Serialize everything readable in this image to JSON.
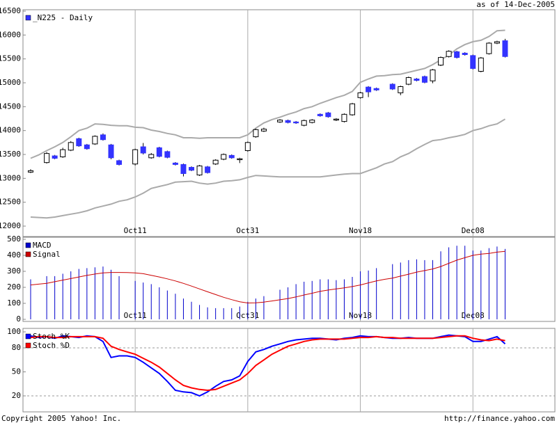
{
  "header": {
    "date": "as of 14-Dec-2005"
  },
  "footer": {
    "copyright": "Copyright 2005 Yahoo! Inc.",
    "url": "http://finance.yahoo.com"
  },
  "chart_data": [
    {
      "type": "candlestick",
      "categories": [
        null,
        null,
        null,
        null,
        null,
        null,
        null,
        null,
        null,
        null,
        null,
        null,
        null,
        "Oct11",
        null,
        null,
        null,
        null,
        null,
        null,
        null,
        null,
        null,
        null,
        null,
        null,
        null,
        "Oct31",
        null,
        null,
        null,
        null,
        null,
        null,
        null,
        null,
        null,
        null,
        null,
        null,
        null,
        "Nov18",
        null,
        null,
        null,
        null,
        null,
        null,
        null,
        null,
        null,
        null,
        null,
        null,
        null,
        "Dec08",
        null,
        null,
        null,
        null
      ],
      "ylim": [
        12000,
        16500
      ],
      "yticks": [
        12000,
        12500,
        13000,
        13500,
        14000,
        14500,
        15000,
        15500,
        16000,
        16500
      ],
      "series": [
        {
          "name": "_N225 - Daily",
          "color": "#3333ff",
          "up_color": "#ffffff",
          "open": [
            13130,
            null,
            13330,
            13470,
            13450,
            13590,
            13830,
            13700,
            13720,
            13910,
            13700,
            13370,
            null,
            13300,
            13660,
            13430,
            13640,
            13560,
            13320,
            13290,
            13230,
            13070,
            13240,
            13300,
            13400,
            13480,
            13390,
            13580,
            13870,
            13990,
            null,
            14180,
            14210,
            14180,
            14110,
            14170,
            14340,
            14370,
            14220,
            14190,
            14330,
            14690,
            14910,
            14880,
            null,
            14970,
            14790,
            14970,
            15080,
            15130,
            15040,
            15370,
            15550,
            15650,
            15620,
            15570,
            15240,
            15610,
            15830,
            15880
          ],
          "high": [
            13190,
            null,
            13550,
            13490,
            13640,
            13780,
            13850,
            13720,
            13900,
            13940,
            13720,
            13390,
            null,
            13620,
            13740,
            13530,
            13660,
            13580,
            13340,
            13310,
            13250,
            13280,
            13260,
            13400,
            13520,
            13500,
            13430,
            13770,
            14040,
            14060,
            null,
            14240,
            14230,
            14200,
            14230,
            14240,
            14360,
            14390,
            14260,
            14360,
            14580,
            14810,
            14930,
            14900,
            null,
            14990,
            14940,
            15130,
            15100,
            15150,
            15290,
            15550,
            15680,
            15670,
            15640,
            15590,
            15540,
            15850,
            15880,
            15920
          ],
          "low": [
            13110,
            null,
            13310,
            13400,
            13430,
            13570,
            13660,
            13600,
            13700,
            13790,
            13400,
            13270,
            null,
            13270,
            13500,
            13410,
            13440,
            13420,
            13270,
            13040,
            13150,
            13050,
            13100,
            13280,
            13380,
            13410,
            13320,
            13560,
            13850,
            13970,
            null,
            14160,
            14150,
            14140,
            14090,
            14150,
            14290,
            14270,
            14200,
            14170,
            14310,
            14670,
            14700,
            14830,
            null,
            14850,
            14740,
            14950,
            15030,
            14990,
            14990,
            15350,
            15530,
            15510,
            15570,
            15280,
            15220,
            15590,
            15810,
            15530
          ],
          "close": [
            13160,
            null,
            13520,
            13420,
            13600,
            13750,
            13680,
            13620,
            13880,
            13810,
            13430,
            13290,
            null,
            13600,
            13530,
            13500,
            13460,
            13440,
            13290,
            13100,
            13170,
            13260,
            13120,
            13380,
            13500,
            13430,
            13410,
            13750,
            14020,
            14030,
            null,
            14220,
            14170,
            14160,
            14210,
            14220,
            14310,
            14290,
            14240,
            14340,
            14560,
            14790,
            14810,
            14850,
            null,
            14870,
            14920,
            15110,
            15050,
            15010,
            15270,
            15530,
            15660,
            15530,
            15590,
            15300,
            15520,
            15830,
            15860,
            15550
          ]
        }
      ],
      "bands": {
        "color": "#aaaaaa",
        "upper": [
          13420,
          13490,
          13580,
          13660,
          13750,
          13870,
          14000,
          14050,
          14140,
          14130,
          14110,
          14100,
          14100,
          14070,
          14060,
          14010,
          13980,
          13940,
          13910,
          13850,
          13850,
          13840,
          13850,
          13850,
          13850,
          13850,
          13850,
          13910,
          14050,
          14160,
          14230,
          14280,
          14340,
          14390,
          14460,
          14500,
          14570,
          14630,
          14690,
          14740,
          14820,
          15010,
          15080,
          15140,
          15150,
          15170,
          15180,
          15220,
          15260,
          15300,
          15380,
          15480,
          15580,
          15710,
          15800,
          15860,
          15890,
          15970,
          16090,
          16100
        ],
        "lower": [
          12190,
          12180,
          12170,
          12190,
          12220,
          12250,
          12280,
          12320,
          12380,
          12420,
          12460,
          12520,
          12550,
          12610,
          12690,
          12790,
          12830,
          12870,
          12920,
          12930,
          12940,
          12900,
          12880,
          12900,
          12940,
          12950,
          12970,
          13020,
          13060,
          13050,
          13040,
          13030,
          13030,
          13030,
          13030,
          13030,
          13030,
          13050,
          13070,
          13090,
          13100,
          13100,
          13160,
          13220,
          13300,
          13350,
          13450,
          13520,
          13620,
          13710,
          13790,
          13810,
          13850,
          13880,
          13920,
          14000,
          14040,
          14100,
          14140,
          14240
        ]
      }
    },
    {
      "type": "combo",
      "categories": [
        null,
        null,
        null,
        null,
        null,
        null,
        null,
        null,
        null,
        null,
        null,
        null,
        null,
        "Oct11",
        null,
        null,
        null,
        null,
        null,
        null,
        null,
        null,
        null,
        null,
        null,
        null,
        null,
        "Oct31",
        null,
        null,
        null,
        null,
        null,
        null,
        null,
        null,
        null,
        null,
        null,
        null,
        null,
        "Nov18",
        null,
        null,
        null,
        null,
        null,
        null,
        null,
        null,
        null,
        null,
        null,
        null,
        null,
        "Dec08",
        null,
        null,
        null,
        null
      ],
      "ylim": [
        0,
        500
      ],
      "yticks": [
        0,
        100,
        200,
        300,
        400,
        500
      ],
      "series": [
        {
          "name": "MACD",
          "kind": "bar",
          "color": "#0000cc",
          "values": [
            250,
            null,
            270,
            270,
            285,
            300,
            315,
            320,
            325,
            330,
            310,
            270,
            null,
            240,
            230,
            220,
            200,
            180,
            160,
            130,
            110,
            90,
            75,
            70,
            70,
            70,
            80,
            110,
            130,
            145,
            null,
            185,
            200,
            220,
            235,
            240,
            250,
            250,
            245,
            250,
            265,
            300,
            305,
            320,
            null,
            345,
            355,
            370,
            375,
            370,
            370,
            425,
            450,
            460,
            460,
            430,
            430,
            445,
            455,
            440
          ]
        },
        {
          "name": "Signal",
          "kind": "line",
          "color": "#cc0000",
          "values": [
            215,
            220,
            225,
            235,
            245,
            255,
            265,
            275,
            283,
            290,
            293,
            293,
            292,
            290,
            285,
            275,
            265,
            253,
            240,
            225,
            208,
            190,
            172,
            155,
            138,
            123,
            110,
            102,
            103,
            108,
            115,
            122,
            130,
            140,
            152,
            163,
            175,
            183,
            190,
            197,
            205,
            215,
            228,
            240,
            250,
            258,
            270,
            282,
            295,
            305,
            315,
            330,
            350,
            370,
            385,
            400,
            408,
            412,
            420,
            425
          ]
        }
      ]
    },
    {
      "type": "line",
      "ylim": [
        0,
        100
      ],
      "yticks": [
        20,
        50,
        80,
        100
      ],
      "ref_lines": [
        20,
        80
      ],
      "series": [
        {
          "name": "Stoch %K",
          "color": "#0000ff",
          "values": [
            95,
            93,
            94,
            92,
            95,
            94,
            93,
            95,
            94,
            88,
            68,
            70,
            70,
            68,
            62,
            55,
            48,
            38,
            27,
            25,
            24,
            20,
            25,
            32,
            38,
            40,
            45,
            63,
            75,
            78,
            82,
            85,
            88,
            90,
            91,
            92,
            92,
            91,
            90,
            92,
            93,
            95,
            94,
            94,
            93,
            92,
            92,
            93,
            92,
            92,
            92,
            94,
            96,
            95,
            94,
            88,
            88,
            91,
            94,
            85
          ]
        },
        {
          "name": "Stoch %D",
          "color": "#ff0000",
          "values": [
            93,
            94,
            94,
            93,
            93,
            94,
            94,
            94,
            94,
            92,
            82,
            78,
            75,
            72,
            67,
            62,
            56,
            48,
            40,
            33,
            30,
            28,
            27,
            28,
            32,
            36,
            40,
            48,
            58,
            65,
            72,
            77,
            82,
            85,
            88,
            90,
            91,
            91,
            91,
            91,
            92,
            93,
            93,
            94,
            93,
            93,
            92,
            92,
            92,
            92,
            92,
            93,
            94,
            95,
            95,
            92,
            90,
            89,
            91,
            89
          ]
        }
      ]
    }
  ]
}
